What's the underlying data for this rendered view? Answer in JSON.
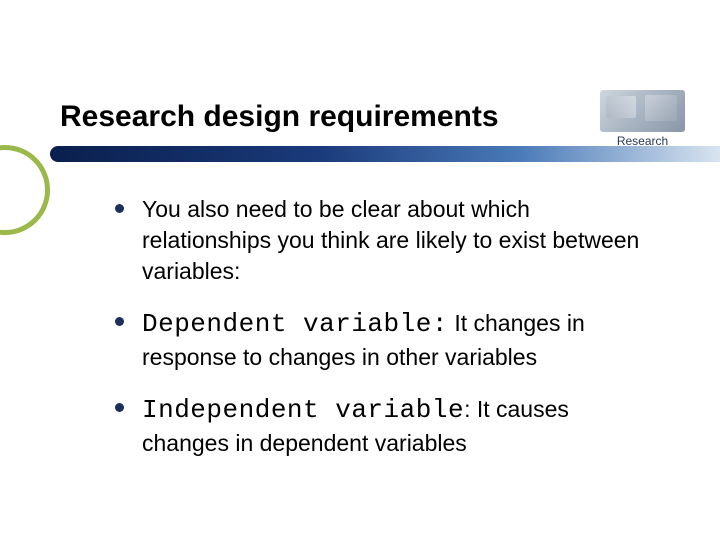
{
  "slide": {
    "title": "Research design requirements",
    "corner_caption": "Research",
    "bullets": [
      {
        "term": "",
        "text": "You also need to be clear about which relationships you think are likely to exist between variables:"
      },
      {
        "term": "Dependent variable:",
        "text": " It changes in response to changes in other variables"
      },
      {
        "term": "Independent variable",
        "colon": ":",
        "text": " It causes changes in dependent variables"
      }
    ]
  },
  "style": {
    "background_color": "#ffffff",
    "title_fontsize": 30,
    "body_fontsize": 23,
    "mono_fontsize": 26,
    "bullet_color": "#1a2f5a",
    "accent_circle_color": "#9bb84a",
    "bar_gradient": [
      "#0a1f4d",
      "#1a3a7a",
      "#4a7ab8",
      "#d8e4f0"
    ]
  }
}
